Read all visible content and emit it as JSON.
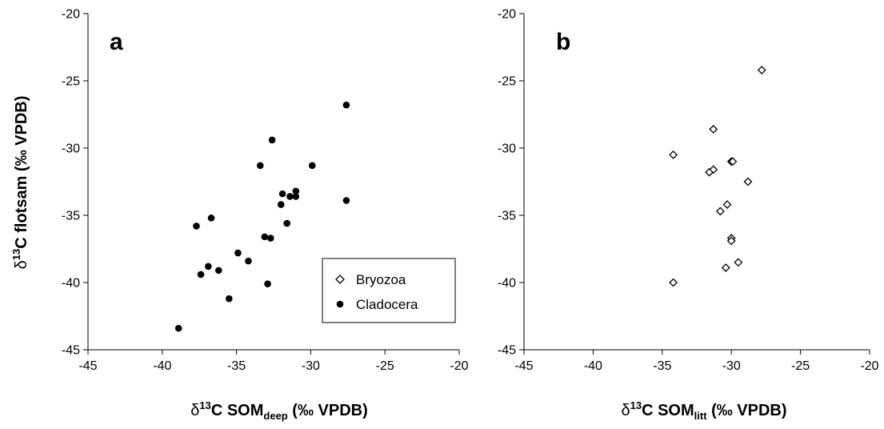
{
  "chart_data": [
    {
      "type": "scatter",
      "panel_label": "a",
      "xlabel": {
        "prefix": "δ",
        "sup": "13",
        "main": "C SOM",
        "sub": "deep",
        "suffix": " (‰ VPDB)"
      },
      "ylabel": {
        "prefix": "δ",
        "sup": "13",
        "main": "C flotsam (‰ VPDB)"
      },
      "xlim": [
        -45,
        -20
      ],
      "ylim": [
        -45,
        -20
      ],
      "xticks": [
        -45,
        -40,
        -35,
        -30,
        -25,
        -20
      ],
      "yticks": [
        -45,
        -40,
        -35,
        -30,
        -25,
        -20
      ],
      "grid": false,
      "legend": {
        "position": "bottom-right",
        "entries": [
          "Bryozoa",
          "Cladocera"
        ]
      },
      "series": [
        {
          "name": "Cladocera",
          "marker": "filled-circle",
          "points": [
            [
              -27.6,
              -26.8
            ],
            [
              -32.6,
              -29.4
            ],
            [
              -33.4,
              -31.3
            ],
            [
              -29.9,
              -31.3
            ],
            [
              -31.0,
              -33.2
            ],
            [
              -31.9,
              -33.4
            ],
            [
              -31.4,
              -33.6
            ],
            [
              -31.0,
              -33.6
            ],
            [
              -27.6,
              -33.9
            ],
            [
              -32.0,
              -34.2
            ],
            [
              -31.6,
              -35.6
            ],
            [
              -36.7,
              -35.2
            ],
            [
              -37.7,
              -35.8
            ],
            [
              -33.1,
              -36.6
            ],
            [
              -32.7,
              -36.7
            ],
            [
              -34.2,
              -38.4
            ],
            [
              -34.9,
              -37.8
            ],
            [
              -36.9,
              -38.8
            ],
            [
              -37.4,
              -39.4
            ],
            [
              -36.2,
              -39.1
            ],
            [
              -32.9,
              -40.1
            ],
            [
              -35.5,
              -41.2
            ],
            [
              -38.9,
              -43.4
            ]
          ]
        }
      ]
    },
    {
      "type": "scatter",
      "panel_label": "b",
      "xlabel": {
        "prefix": "δ",
        "sup": "13",
        "main": "C SOM",
        "sub": "litt",
        "suffix": " (‰ VPDB)"
      },
      "xlim": [
        -45,
        -20
      ],
      "ylim": [
        -45,
        -20
      ],
      "xticks": [
        -45,
        -40,
        -35,
        -30,
        -25,
        -20
      ],
      "yticks": [
        -45,
        -40,
        -35,
        -30,
        -25,
        -20
      ],
      "grid": false,
      "series": [
        {
          "name": "Bryozoa",
          "marker": "open-diamond",
          "points": [
            [
              -27.8,
              -24.2
            ],
            [
              -31.3,
              -28.6
            ],
            [
              -34.2,
              -30.5
            ],
            [
              -30.0,
              -31.0
            ],
            [
              -29.9,
              -31.0
            ],
            [
              -31.3,
              -31.6
            ],
            [
              -31.6,
              -31.8
            ],
            [
              -28.8,
              -32.5
            ],
            [
              -30.3,
              -34.2
            ],
            [
              -30.8,
              -34.7
            ],
            [
              -30.0,
              -36.7
            ],
            [
              -30.0,
              -36.9
            ],
            [
              -29.5,
              -38.5
            ],
            [
              -30.4,
              -38.9
            ],
            [
              -34.2,
              -40.0
            ]
          ]
        }
      ]
    }
  ]
}
